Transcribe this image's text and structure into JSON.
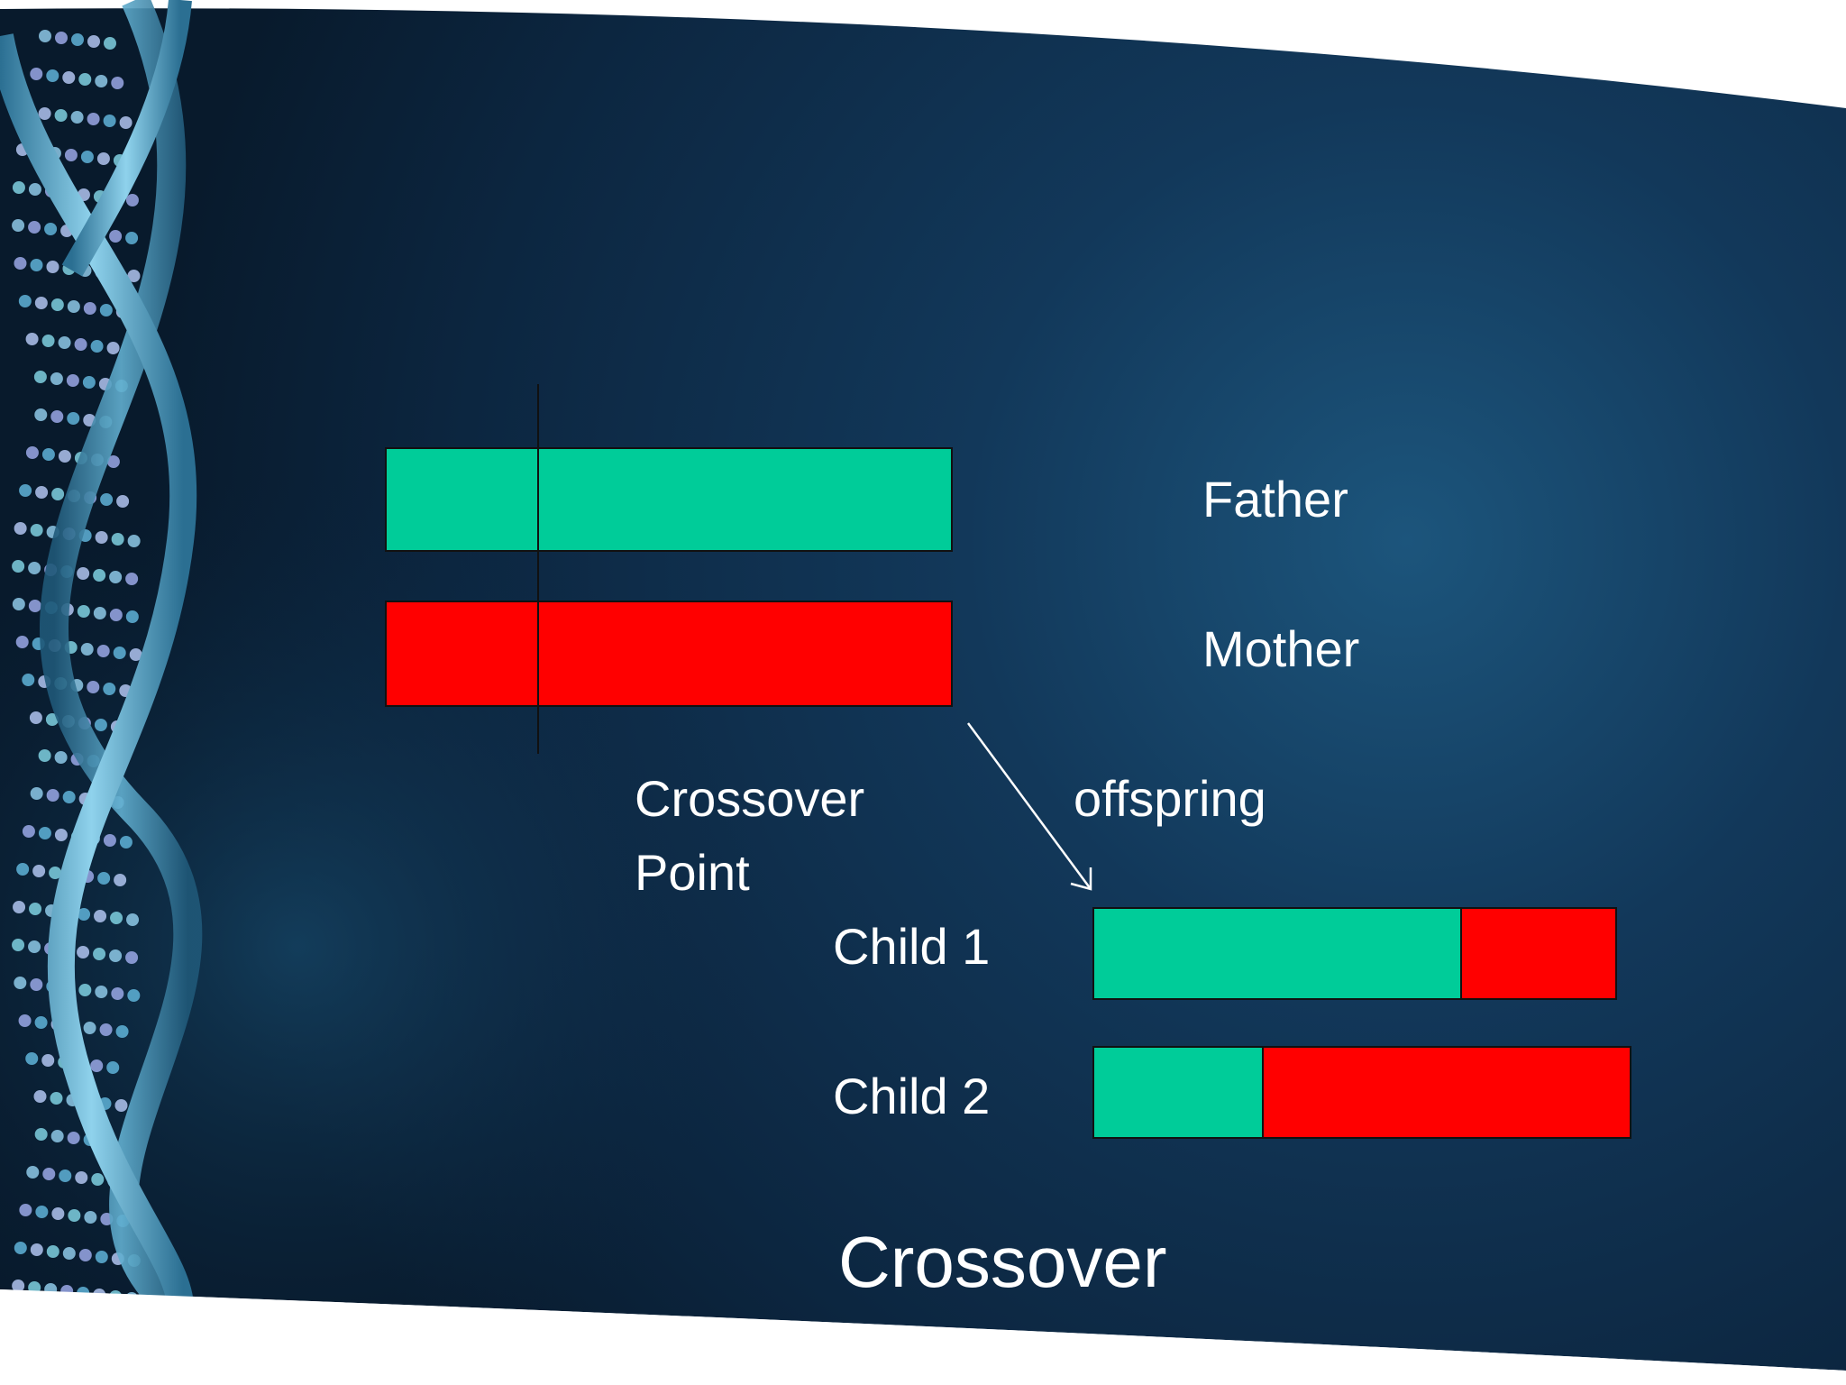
{
  "labels": {
    "father": "Father",
    "mother": "Mother",
    "crossover_point_line1": "Crossover",
    "crossover_point_line2": "Point",
    "offspring": "offspring",
    "child1": "Child 1",
    "child2": "Child 2",
    "title": "Crossover"
  },
  "colors": {
    "father_gene": "#00cc99",
    "mother_gene": "#ff0000",
    "background_dark": "#0b2236",
    "background_glow": "#1a4e72",
    "text": "#ffffff"
  },
  "icons": {
    "helix": "dna-helix-decoration"
  }
}
